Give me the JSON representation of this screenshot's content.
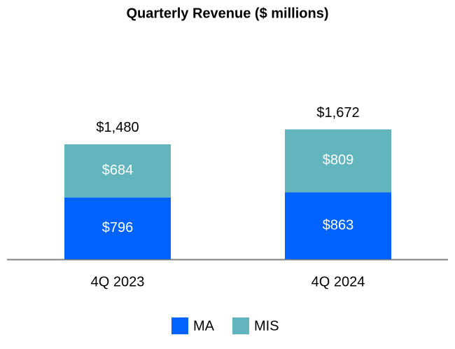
{
  "chart_data": {
    "type": "stacked_bar",
    "title": "Quarterly Revenue ($ millions)",
    "categories": [
      "4Q 2023",
      "4Q 2024"
    ],
    "series": [
      {
        "name": "MA",
        "color": "#0062ff",
        "values": [
          796,
          863
        ],
        "value_labels": [
          "$796",
          "$863"
        ]
      },
      {
        "name": "MIS",
        "color": "#62b5bc",
        "values": [
          684,
          809
        ],
        "value_labels": [
          "$684",
          "$809"
        ]
      }
    ],
    "totals": [
      1480,
      1672
    ],
    "total_labels": [
      "$1,480",
      "$1,672"
    ]
  }
}
